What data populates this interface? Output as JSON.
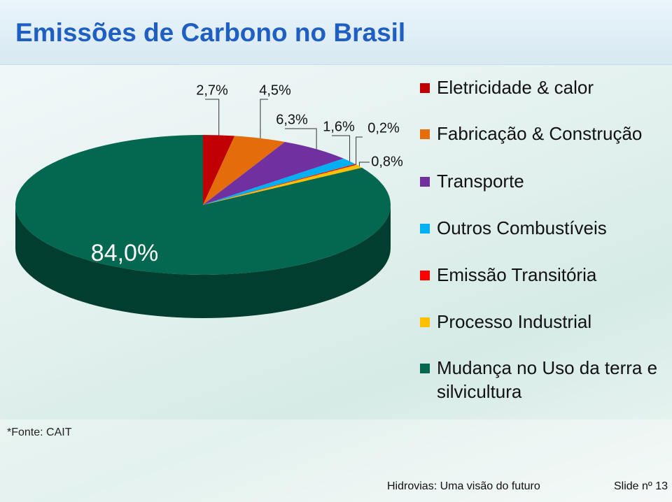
{
  "slide": {
    "title": "Emissões de Carbono no Brasil",
    "source": "*Fonte: CAIT",
    "footer": "Hidrovias: Uma visão do futuro",
    "slide_number": "Slide nº 13"
  },
  "chart_data": {
    "type": "pie",
    "categories": [
      "Eletricidade & calor",
      "Fabricação & Construção",
      "Transporte",
      "Outros Combustíveis",
      "Emissão Transitória",
      "Processo Industrial",
      "Mudança no Uso da terra e silvicultura"
    ],
    "values": [
      2.7,
      4.5,
      6.3,
      1.6,
      0.2,
      0.8,
      84.0
    ],
    "value_labels": [
      "2,7%",
      "4,5%",
      "6,3%",
      "1,6%",
      "0,2%",
      "0,8%",
      "84,0%"
    ],
    "colors": [
      "#c00000",
      "#e46c0a",
      "#7030a0",
      "#00b0f0",
      "#ff0000",
      "#ffc000",
      "#04674f"
    ],
    "legend": "right"
  }
}
